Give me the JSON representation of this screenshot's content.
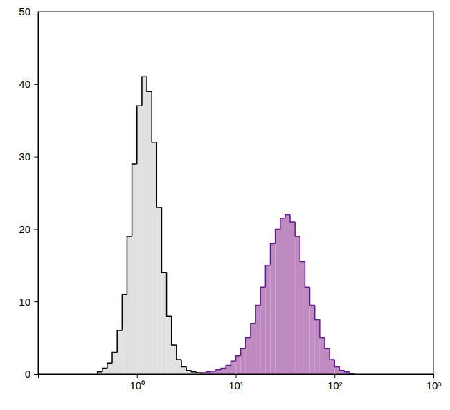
{
  "chart_data": {
    "type": "histogram",
    "log": "x",
    "xlim": [
      0.1,
      1000
    ],
    "xticks": [
      {
        "value": 1,
        "label": "10⁰"
      },
      {
        "value": 10,
        "label": "10¹"
      },
      {
        "value": 100,
        "label": "10²"
      },
      {
        "value": 1000,
        "label": "10³"
      }
    ],
    "ylim": [
      0,
      50
    ],
    "yticks": [
      0,
      10,
      20,
      30,
      40,
      50
    ],
    "series": [
      {
        "color": "#e0e0e0",
        "bins": [
          0.398,
          0.447,
          0.501,
          0.562,
          0.631,
          0.708,
          0.794,
          0.891,
          1,
          1.122,
          1.259,
          1.413,
          1.585,
          1.778,
          1.995,
          2.239,
          2.512,
          2.818,
          3.162,
          3.548,
          3.981,
          4.467,
          5.012
        ],
        "values": [
          0.3,
          0.8,
          1.5,
          3,
          6,
          11,
          19,
          29,
          37,
          41,
          39,
          32,
          23,
          14,
          8,
          4,
          2,
          1,
          0.5,
          0.3,
          0.2,
          0.1
        ]
      },
      {
        "color": "#bf8abf",
        "bins": [
          4.467,
          5.012,
          5.623,
          6.31,
          7.079,
          7.943,
          8.913,
          10,
          11.22,
          12.59,
          14.13,
          15.85,
          17.78,
          19.95,
          22.39,
          25.12,
          28.18,
          31.62,
          35.48,
          39.81,
          44.67,
          50.12,
          56.23,
          63.1,
          70.79,
          79.43,
          89.13,
          100,
          112.2,
          125.9,
          141.3,
          158.5
        ],
        "values": [
          0.2,
          0.3,
          0.4,
          0.6,
          0.8,
          1.2,
          1.8,
          2.5,
          3.5,
          5,
          7,
          9.5,
          12,
          15,
          18,
          20,
          21.5,
          22,
          21,
          19,
          15.5,
          12,
          9.5,
          7.5,
          5,
          3.5,
          2,
          1,
          0.5,
          0.3,
          0.1
        ]
      }
    ]
  }
}
